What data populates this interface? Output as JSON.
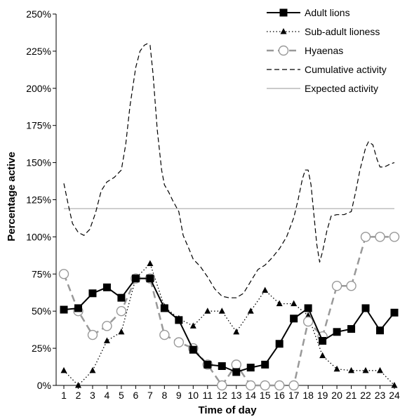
{
  "chart_data": {
    "type": "line",
    "xlabel": "Time of day",
    "ylabel": "Percentage active",
    "ylim": [
      0,
      250
    ],
    "x": [
      1,
      2,
      3,
      4,
      5,
      6,
      7,
      8,
      9,
      10,
      11,
      12,
      13,
      14,
      15,
      16,
      17,
      18,
      19,
      20,
      21,
      22,
      23,
      24
    ],
    "y_ticks": [
      "0%",
      "25%",
      "50%",
      "75%",
      "100%",
      "125%",
      "150%",
      "175%",
      "200%",
      "225%",
      "250%"
    ],
    "x_ticks": [
      "1",
      "2",
      "3",
      "4",
      "5",
      "6",
      "7",
      "8",
      "9",
      "10",
      "11",
      "12",
      "13",
      "14",
      "15",
      "16",
      "17",
      "18",
      "19",
      "20",
      "21",
      "22",
      "23",
      "24"
    ],
    "legend_position": "top-right",
    "series": [
      {
        "name": "Adult lions",
        "style": "solid-square",
        "color": "#000000",
        "values": [
          51,
          52,
          62,
          66,
          59,
          72,
          72,
          52,
          44,
          24,
          14,
          13,
          9,
          12,
          14,
          28,
          45,
          52,
          30,
          36,
          38,
          52,
          37,
          49
        ]
      },
      {
        "name": "Sub-adult lioness",
        "style": "dotted-triangle",
        "color": "#000000",
        "values": [
          10,
          0,
          10,
          30,
          36,
          72,
          82,
          53,
          45,
          40,
          50,
          50,
          36,
          50,
          64,
          55,
          55,
          47,
          20,
          11,
          10,
          10,
          10,
          0
        ]
      },
      {
        "name": "Hyaenas",
        "style": "dashed-circle",
        "color": "#999999",
        "values": [
          75,
          50,
          34,
          40,
          50,
          72,
          72,
          34,
          29,
          25,
          14,
          0,
          14,
          0,
          0,
          0,
          0,
          43,
          33,
          67,
          67,
          100,
          100,
          100
        ]
      },
      {
        "name": "Cumulative activity",
        "style": "dashed",
        "color": "#000000",
        "x": [
          1,
          1.3,
          1.6,
          2,
          2.4,
          2.8,
          3.2,
          3.6,
          4,
          4.5,
          5,
          5.3,
          5.6,
          6,
          6.3,
          6.6,
          6.8,
          7,
          7.2,
          7.5,
          7.8,
          8,
          8.3,
          8.6,
          9,
          9.3,
          9.7,
          10,
          10.5,
          11,
          11.5,
          12,
          12.5,
          13,
          13.5,
          14,
          14.5,
          15,
          15.5,
          16,
          16.5,
          17,
          17.3,
          17.6,
          17.8,
          18,
          18.2,
          18.4,
          18.6,
          18.8,
          19,
          19.3,
          19.6,
          20,
          20.5,
          21,
          21.3,
          21.6,
          22,
          22.2,
          22.5,
          22.8,
          23,
          23.3,
          23.7,
          24
        ],
        "values": [
          136,
          122,
          109,
          103,
          101,
          105,
          116,
          131,
          137,
          140,
          145,
          162,
          188,
          214,
          225,
          229,
          230,
          229,
          210,
          172,
          145,
          135,
          130,
          124,
          117,
          101,
          92,
          85,
          80,
          73,
          65,
          60,
          59,
          59,
          62,
          70,
          78,
          81,
          86,
          92,
          100,
          113,
          125,
          139,
          145,
          145,
          135,
          115,
          95,
          83,
          90,
          104,
          114,
          115,
          115,
          117,
          130,
          145,
          160,
          164,
          162,
          152,
          147,
          147,
          149,
          150
        ]
      },
      {
        "name": "Expected activity",
        "style": "solid-thin",
        "color": "#aaaaaa",
        "x": [
          1,
          24
        ],
        "values": [
          119,
          119
        ]
      }
    ]
  }
}
